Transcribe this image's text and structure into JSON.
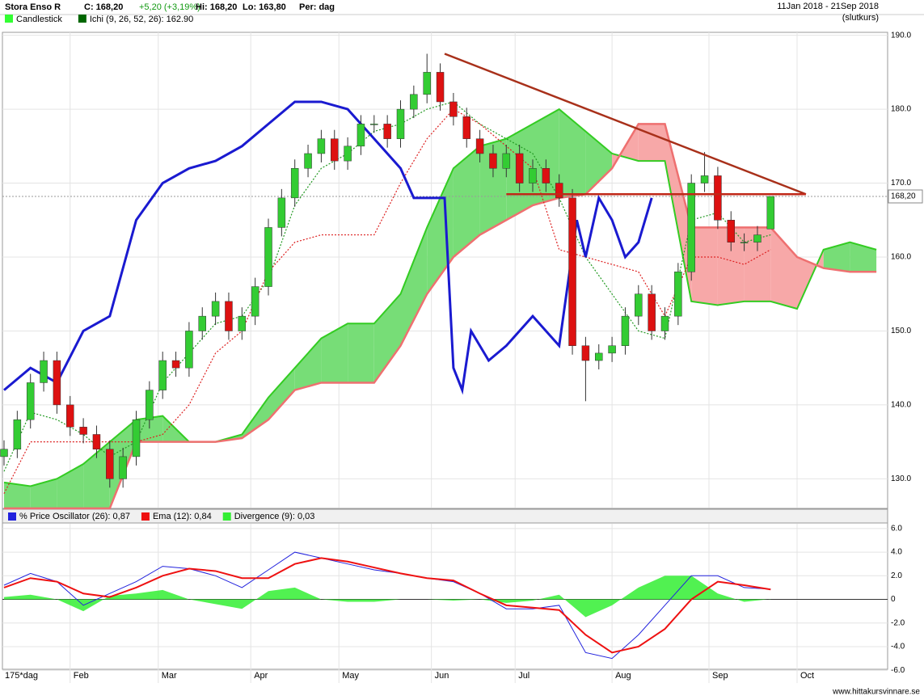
{
  "header": {
    "name": "Stora Enso R",
    "close": "C: 168,20",
    "change": "+5,20 (+3,19%)",
    "high": "Hi: 168,20",
    "low": "Lo: 163,80",
    "period": "Per: dag",
    "range": "11Jan 2018 - 21Sep 2018",
    "mode": "(slutkurs)",
    "bars": "175*dag",
    "site": "www.hittakursvinnare.se"
  },
  "chart_data": [
    {
      "type": "candlestick",
      "legend": [
        {
          "label": "Candlestick",
          "color": "#33ff33"
        },
        {
          "label": "Ichi (9, 26, 52, 26): 162.90",
          "color": "#006600"
        }
      ],
      "x": [
        0,
        3,
        6,
        9,
        12,
        15,
        18,
        21,
        24,
        27,
        30,
        33,
        36,
        39,
        42,
        45,
        48,
        51,
        54,
        57,
        60,
        63,
        66,
        69,
        72,
        75,
        78,
        81,
        84,
        87,
        90,
        93,
        96,
        99,
        102,
        105,
        108,
        111,
        114,
        117,
        120,
        123,
        126,
        129,
        132,
        135,
        138,
        141,
        144,
        147,
        150,
        153,
        156,
        159,
        162,
        165,
        168,
        171,
        174
      ],
      "open": [
        133,
        134,
        138,
        143,
        146,
        140,
        137,
        136,
        134,
        130,
        133,
        138,
        142,
        146,
        145,
        150,
        152,
        154,
        150,
        152,
        156,
        164,
        168,
        172,
        174,
        176,
        173,
        175,
        178,
        178,
        176,
        180,
        182,
        185,
        181,
        179,
        176,
        174,
        172,
        174,
        170,
        172,
        170,
        168,
        148,
        146,
        147,
        148,
        152,
        155,
        150,
        152,
        158,
        170,
        171,
        165,
        162,
        162,
        163.8
      ],
      "high": [
        135.2,
        139.2,
        144.2,
        147.2,
        147.2,
        141.2,
        138.2,
        137.2,
        135.2,
        134.2,
        139.2,
        143.2,
        147.2,
        147.2,
        151.2,
        153.2,
        155.2,
        155.2,
        153.2,
        157.2,
        165.2,
        169.2,
        173.2,
        175.2,
        177.2,
        177.2,
        176.2,
        179.2,
        179.2,
        179.2,
        181.2,
        183.2,
        187.5,
        186.2,
        182.2,
        180.2,
        177.2,
        175.2,
        175.2,
        175.2,
        173.2,
        173.2,
        171.2,
        169.2,
        149.2,
        148.2,
        149.2,
        153.2,
        156.2,
        156.2,
        153.2,
        159.2,
        171.2,
        174.2,
        172.2,
        166.2,
        163.2,
        164.2,
        168.2
      ],
      "low": [
        131.8,
        132.8,
        136.8,
        141.8,
        138.8,
        135.8,
        134.8,
        132.8,
        128.8,
        128.8,
        131.8,
        136.8,
        140.8,
        143.8,
        143.8,
        148.8,
        150.8,
        148.8,
        148.8,
        150.8,
        154.8,
        162.8,
        166.8,
        170.8,
        172.8,
        171.8,
        171.8,
        173.8,
        176.8,
        174.8,
        174.8,
        178.8,
        180.8,
        179.8,
        177.8,
        174.8,
        172.8,
        170.8,
        170.8,
        168.8,
        168.8,
        168.8,
        166.8,
        146.8,
        140.5,
        144.8,
        145.8,
        146.8,
        150.8,
        148.8,
        148.8,
        150.8,
        156.8,
        168.8,
        163.8,
        160.8,
        160.8,
        160.8,
        163.8
      ],
      "close": [
        134,
        138,
        143,
        146,
        140,
        137,
        136,
        134,
        130,
        133,
        138,
        142,
        146,
        145,
        150,
        152,
        154,
        150,
        152,
        156,
        164,
        168,
        172,
        174,
        176,
        173,
        175,
        178,
        178,
        176,
        180,
        182,
        185,
        181,
        179,
        176,
        174,
        172,
        174,
        170,
        172,
        170,
        168,
        148,
        146,
        147,
        148,
        152,
        155,
        150,
        152,
        158,
        170,
        171,
        165,
        162,
        162,
        163,
        168.2
      ],
      "up_color": "#33cc33",
      "down_color": "#dd1111",
      "cloud": {
        "x": [
          0,
          6,
          12,
          18,
          24,
          30,
          36,
          42,
          48,
          54,
          60,
          66,
          72,
          78,
          84,
          90,
          96,
          102,
          108,
          114,
          120,
          126,
          132,
          138,
          144,
          150,
          156,
          162,
          168,
          174,
          180,
          186,
          192,
          198
        ],
        "span_a": [
          129.5,
          129,
          130,
          132,
          135,
          138,
          138.5,
          135,
          135,
          136,
          141,
          145,
          149,
          151,
          151,
          155,
          164,
          172,
          175,
          176,
          178,
          180,
          177,
          174,
          173,
          173,
          154,
          153.5,
          154,
          154,
          153,
          161,
          162,
          161
        ],
        "span_b": [
          126,
          126,
          126,
          126,
          126,
          135,
          135,
          135,
          135,
          135.5,
          138,
          142,
          143,
          143,
          143,
          148,
          155,
          160,
          163,
          165,
          167,
          168,
          168.5,
          172,
          178,
          178,
          164,
          164,
          164,
          164,
          160,
          158.5,
          158,
          158
        ],
        "up_color": "#77dd77",
        "down_color": "#f7a8a8",
        "a_color": "#33cc22",
        "b_color": "#ee7070"
      },
      "lines": [
        {
          "color": "#229922",
          "dash": "2,2",
          "x": [
            0,
            6,
            12,
            18,
            24,
            30,
            36,
            42,
            48,
            54,
            60,
            66,
            72,
            78,
            84,
            90,
            96,
            102,
            108,
            114,
            120,
            126,
            132,
            138,
            144,
            150,
            156,
            162,
            168,
            174
          ],
          "values": [
            131,
            139,
            138,
            136,
            133,
            135,
            143,
            147,
            151,
            152,
            157,
            167,
            172,
            174,
            177,
            178,
            180,
            181,
            178,
            176,
            174,
            168,
            160,
            155,
            150,
            149,
            165,
            166,
            162,
            163
          ]
        },
        {
          "color": "#dd2222",
          "dash": "2,2",
          "x": [
            0,
            6,
            12,
            18,
            24,
            30,
            36,
            42,
            48,
            54,
            60,
            66,
            72,
            78,
            84,
            90,
            96,
            102,
            108,
            114,
            120,
            126,
            132,
            138,
            144,
            150,
            156,
            162,
            168,
            174
          ],
          "values": [
            128,
            135,
            135,
            135,
            135,
            135,
            136,
            140,
            147,
            150,
            158,
            162,
            163,
            163,
            163,
            170,
            176,
            180,
            178,
            175,
            172,
            161,
            160,
            159,
            158,
            152,
            160,
            160,
            159,
            161
          ]
        },
        {
          "color": "#1a1ad0",
          "width": 3,
          "x": [
            0,
            6,
            12,
            18,
            24,
            30,
            36,
            42,
            48,
            54,
            60,
            66,
            72,
            78,
            84,
            90,
            93,
            96,
            100,
            102,
            104,
            106,
            108,
            110,
            114,
            120,
            126,
            130,
            132,
            135,
            138,
            141,
            144,
            147
          ],
          "values": [
            142,
            145,
            143,
            150,
            152,
            165,
            170,
            172,
            173,
            175,
            178,
            181,
            181,
            180,
            176,
            172,
            168,
            168,
            168,
            145,
            142,
            150,
            148,
            146,
            148,
            152,
            148,
            165,
            160,
            168,
            165,
            160,
            162,
            168
          ]
        }
      ],
      "trendlines": [
        {
          "x": [
            100,
            182
          ],
          "y": [
            187.5,
            168.5
          ],
          "color": "#a8301a"
        },
        {
          "x": [
            114,
            182
          ],
          "y": [
            168.5,
            168.5
          ],
          "color": "#c02818"
        }
      ],
      "last_price": {
        "value": 168.2,
        "label": "168,20"
      },
      "xlim": [
        0,
        200
      ],
      "ylim": [
        126.1,
        190.4
      ],
      "yticks": [
        {
          "value": 130,
          "label": "130.0"
        },
        {
          "value": 140,
          "label": "140.0"
        },
        {
          "value": 150,
          "label": "150.0"
        },
        {
          "value": 160,
          "label": "160.0"
        },
        {
          "value": 170,
          "label": "170.0"
        },
        {
          "value": 180,
          "label": "180.0"
        },
        {
          "value": 190,
          "label": "190.0"
        }
      ],
      "xticks": [
        {
          "value": 15,
          "label": "Feb"
        },
        {
          "value": 35,
          "label": "Mar"
        },
        {
          "value": 56,
          "label": "Apr"
        },
        {
          "value": 76,
          "label": "May"
        },
        {
          "value": 97,
          "label": "Jun"
        },
        {
          "value": 116,
          "label": "Jul"
        },
        {
          "value": 138,
          "label": "Aug"
        },
        {
          "value": 160,
          "label": "Sep"
        },
        {
          "value": 180,
          "label": "Oct"
        }
      ],
      "grid": true
    },
    {
      "type": "line",
      "x": [
        0,
        6,
        12,
        18,
        24,
        30,
        36,
        42,
        48,
        54,
        60,
        66,
        72,
        78,
        84,
        90,
        96,
        102,
        108,
        114,
        120,
        126,
        132,
        138,
        144,
        150,
        156,
        162,
        168,
        174
      ],
      "series": [
        {
          "name": "% Price Oscillator (26): 0,87",
          "color": "#2222dd",
          "values": [
            1.2,
            2.2,
            1.5,
            -0.5,
            0.5,
            1.5,
            2.8,
            2.6,
            2.0,
            1.0,
            2.5,
            4.0,
            3.5,
            3.0,
            2.5,
            2.2,
            1.8,
            1.5,
            0.5,
            -0.8,
            -0.8,
            -0.5,
            -4.5,
            -5.0,
            -3.0,
            -0.5,
            2.0,
            2.0,
            1.0,
            0.87
          ]
        },
        {
          "name": "Ema (12): 0,84",
          "color": "#ee1111",
          "values": [
            1.0,
            1.8,
            1.5,
            0.5,
            0.2,
            1.0,
            2.0,
            2.6,
            2.4,
            1.8,
            1.8,
            3.0,
            3.5,
            3.2,
            2.7,
            2.2,
            1.8,
            1.6,
            0.5,
            -0.5,
            -0.7,
            -0.9,
            -3.0,
            -4.5,
            -4.0,
            -2.5,
            0.0,
            1.5,
            1.2,
            0.84
          ]
        },
        {
          "name": "Divergence (9): 0,03",
          "color": "#33ee33",
          "area": true,
          "values": [
            0.2,
            0.4,
            0,
            -1.0,
            0.3,
            0.5,
            0.8,
            0,
            -0.4,
            -0.8,
            0.7,
            1.0,
            0,
            -0.2,
            -0.2,
            0,
            0,
            -0.1,
            0,
            -0.3,
            -0.1,
            0.4,
            -1.5,
            -0.5,
            1.0,
            2.0,
            2.0,
            0.5,
            -0.2,
            0.03
          ]
        }
      ],
      "xlim": [
        0,
        200
      ],
      "ylim": [
        -6.6,
        6.4
      ],
      "yticks": [
        {
          "value": 6,
          "label": "6.0"
        },
        {
          "value": 4,
          "label": "4.0"
        },
        {
          "value": 2,
          "label": "2.0"
        },
        0,
        {
          "value": -2,
          "label": "-2.0"
        },
        {
          "value": -4,
          "label": "-4.0"
        },
        {
          "value": -6,
          "label": "-6.0"
        }
      ],
      "grid": true
    }
  ]
}
